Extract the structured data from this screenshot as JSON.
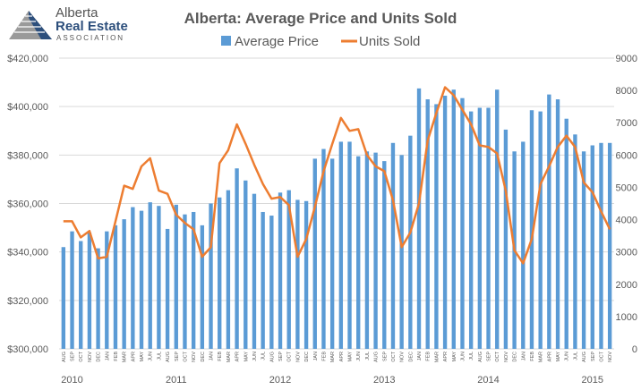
{
  "logo": {
    "line1": "Alberta",
    "line2": "Real Estate",
    "line3": "ASSOCIATION"
  },
  "chart_data": {
    "type": "bar+line",
    "title": "Alberta: Average Price and Units Sold",
    "legend": {
      "position": "top",
      "entries": [
        "Average Price",
        "Units Sold"
      ]
    },
    "colors": {
      "bars": "#5b9bd5",
      "line": "#ed7d31",
      "grid": "#d9d9d9",
      "text": "#595959"
    },
    "grid": true,
    "month_labels": [
      "AUG",
      "SEP",
      "OCT",
      "NOV",
      "DEC",
      "JAN",
      "FEB",
      "MAR",
      "APR",
      "MAY",
      "JUN",
      "JUL",
      "AUG",
      "SEP",
      "OCT",
      "NOV",
      "DEC",
      "JAN",
      "FEB",
      "MAR",
      "APR",
      "MAY",
      "JUN",
      "JUL",
      "AUG",
      "SEP",
      "OCT",
      "NOV",
      "DEC",
      "JAN",
      "FEB",
      "MAR",
      "APR",
      "MAY",
      "JUN",
      "JUL",
      "AUG",
      "SEP",
      "OCT",
      "NOV",
      "DEC",
      "JAN",
      "FEB",
      "MAR",
      "APR",
      "MAY",
      "JUN",
      "JUL",
      "AUG",
      "SEP",
      "OCT",
      "NOV",
      "DEC",
      "JAN",
      "FEB",
      "MAR",
      "APR",
      "MAY",
      "JUN",
      "JUL",
      "AUG",
      "SEP",
      "OCT",
      "NOV"
    ],
    "year_labels": [
      {
        "label": "2010",
        "start_index": 0
      },
      {
        "label": "2011",
        "start_index": 12
      },
      {
        "label": "2012",
        "start_index": 24
      },
      {
        "label": "2013",
        "start_index": 36
      },
      {
        "label": "2014",
        "start_index": 48
      },
      {
        "label": "2015",
        "start_index": 60
      }
    ],
    "left_axis": {
      "ticks": [
        "$300,000",
        "$320,000",
        "$340,000",
        "$360,000",
        "$380,000",
        "$400,000",
        "$420,000"
      ],
      "min": 300000,
      "max": 420000
    },
    "right_axis": {
      "ticks": [
        "0",
        "1000",
        "2000",
        "3000",
        "4000",
        "5000",
        "6000",
        "7000",
        "8000",
        "9000"
      ],
      "min": 0,
      "max": 9000
    },
    "series": [
      {
        "name": "Average Price",
        "type": "bar",
        "axis": "left",
        "values": [
          342000,
          348500,
          344500,
          348000,
          341500,
          348500,
          351000,
          353500,
          358500,
          357000,
          360500,
          359000,
          349500,
          359500,
          355500,
          356500,
          351000,
          360000,
          362500,
          365500,
          374500,
          369500,
          364000,
          356500,
          355000,
          364500,
          365500,
          361500,
          361000,
          378500,
          382500,
          378500,
          385500,
          385500,
          379500,
          381500,
          381000,
          377500,
          385000,
          380000,
          388000,
          407500,
          403000,
          401000,
          404500,
          407000,
          403500,
          398000,
          399500,
          399500,
          407000,
          390500,
          381500,
          385500,
          398500,
          398000,
          405000,
          403000,
          395000,
          388500,
          381500,
          384000,
          385000,
          385000
        ]
      },
      {
        "name": "Units Sold",
        "type": "line",
        "axis": "right",
        "values": [
          3950,
          3950,
          3450,
          3650,
          2800,
          2850,
          3950,
          5050,
          4950,
          5650,
          5900,
          4900,
          4800,
          4150,
          3900,
          3700,
          2850,
          3150,
          5750,
          6150,
          6950,
          6350,
          5700,
          5100,
          4650,
          4700,
          4450,
          2850,
          3400,
          4400,
          5500,
          6350,
          7150,
          6750,
          6800,
          6000,
          5650,
          5500,
          4600,
          3150,
          3600,
          4500,
          6450,
          7300,
          8100,
          7850,
          7400,
          6950,
          6300,
          6250,
          6050,
          4900,
          3050,
          2650,
          3400,
          5100,
          5650,
          6250,
          6600,
          6250,
          5150,
          4850,
          4250,
          3700
        ]
      }
    ]
  }
}
